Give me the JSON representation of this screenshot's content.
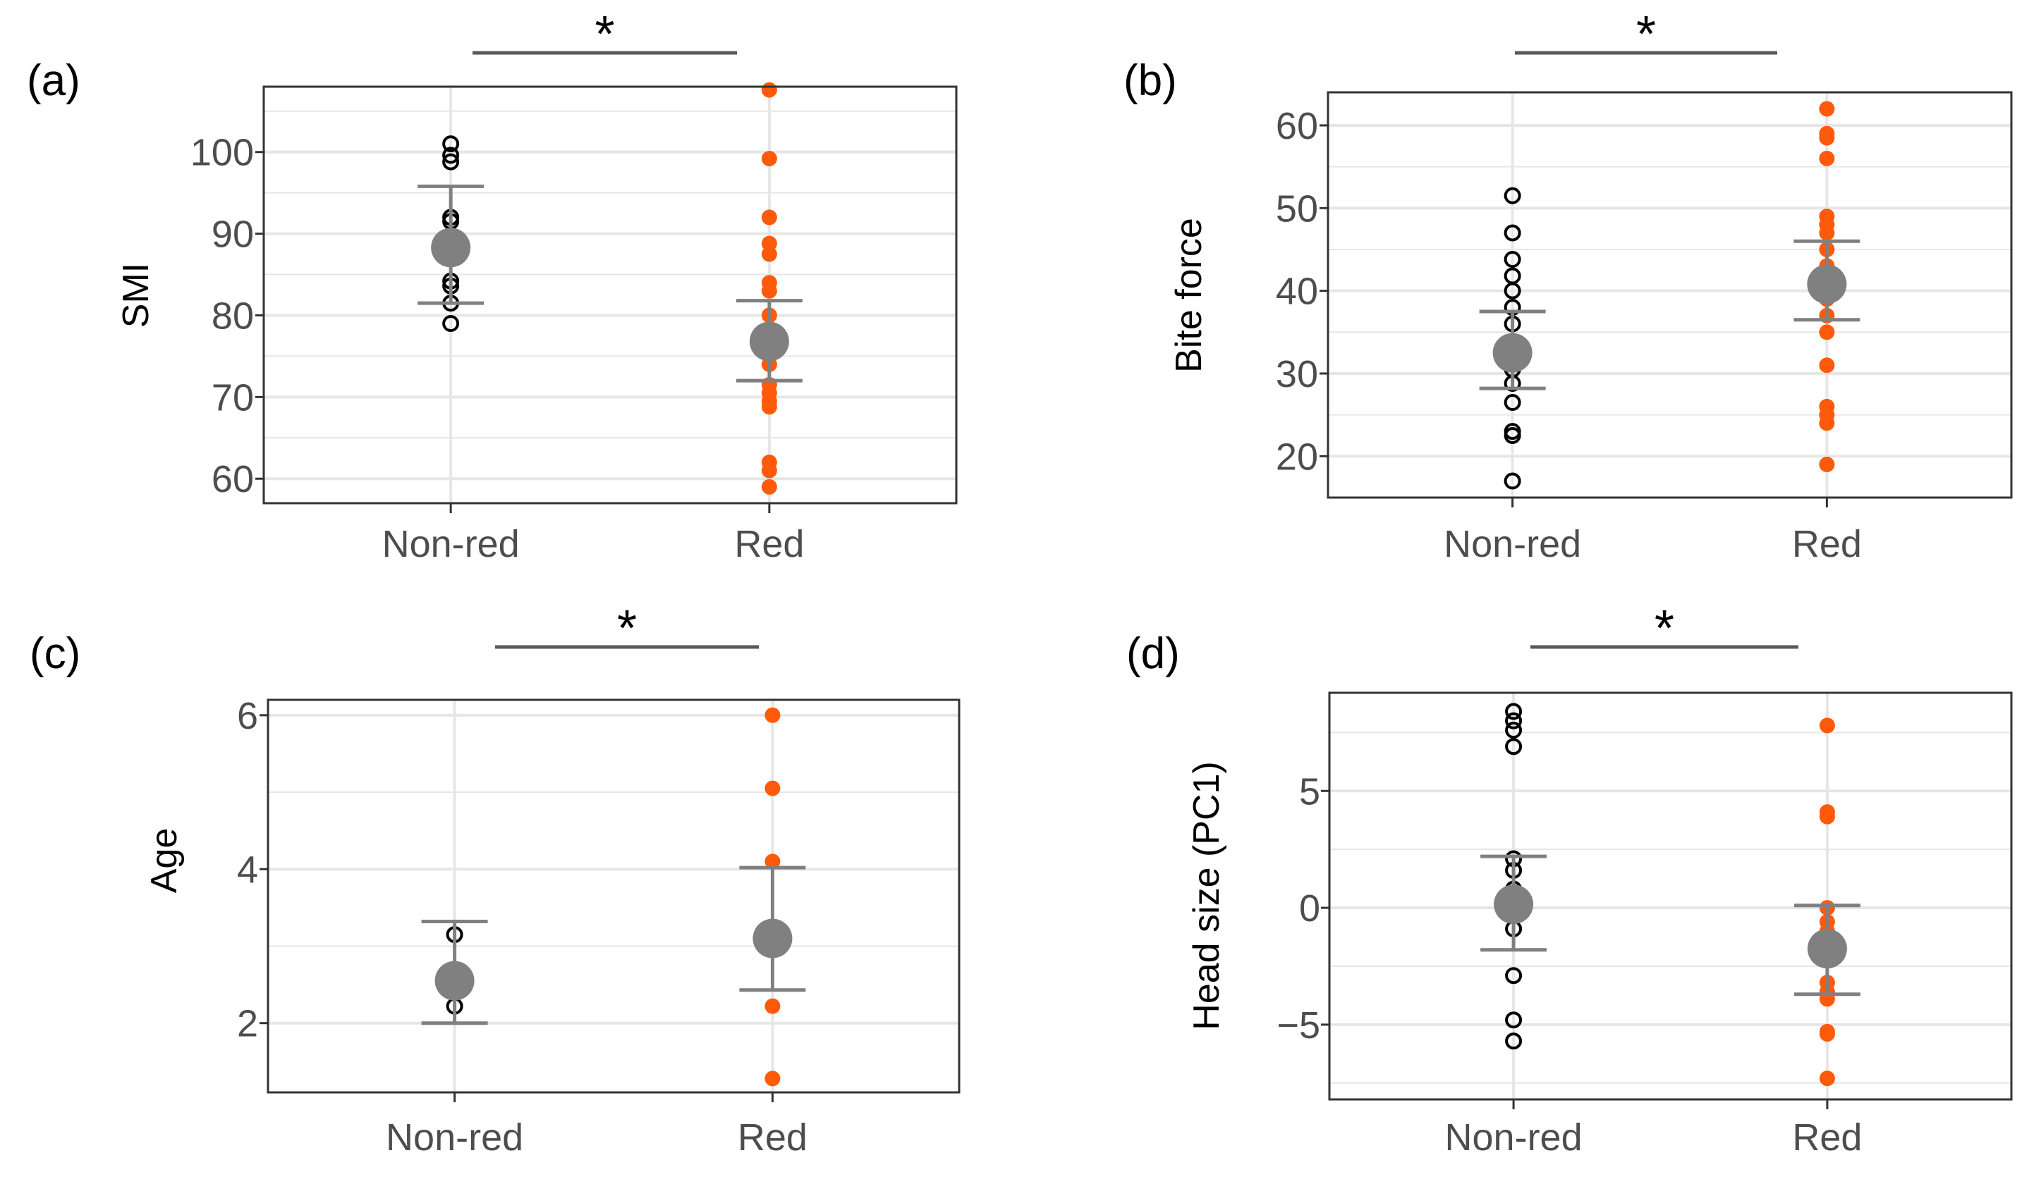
{
  "figure": {
    "background": "#ffffff"
  },
  "colors": {
    "non_red": "#000000",
    "red": "#ff5a0a",
    "summary": "#808080",
    "gridline": "#e6e6e6",
    "frame": "#333333",
    "sig_bar": "#595959"
  },
  "chart_data": [
    {
      "panel": "(a)",
      "type": "scatter",
      "categories": [
        "Non-red",
        "Red"
      ],
      "ylabel": "SMI",
      "ylim": [
        57,
        108
      ],
      "yticks": [
        60,
        70,
        80,
        90,
        100
      ],
      "significance": "*",
      "series": [
        {
          "name": "Non-red",
          "points": [
            101,
            99.6,
            98.8,
            92.0,
            91.5,
            84.2,
            83.6,
            81.5,
            79.0
          ],
          "mean": 88.3,
          "ci": [
            81.5,
            95.8
          ]
        },
        {
          "name": "Red",
          "points": [
            107.6,
            99.2,
            92.0,
            88.8,
            87.5,
            84.0,
            83.0,
            80.0,
            76.5,
            74.0,
            71.5,
            70.5,
            69.5,
            68.8,
            62.0,
            61.0,
            59.0
          ],
          "mean": 76.8,
          "ci": [
            72.0,
            81.8
          ]
        }
      ]
    },
    {
      "panel": "(b)",
      "type": "scatter",
      "categories": [
        "Non-red",
        "Red"
      ],
      "ylabel": "Bite force",
      "ylim": [
        15,
        64
      ],
      "yticks": [
        20,
        30,
        40,
        50,
        60
      ],
      "significance": "*",
      "series": [
        {
          "name": "Non-red",
          "points": [
            51.5,
            47.0,
            43.8,
            41.8,
            40.0,
            38.0,
            36.0,
            31.5,
            30.5,
            28.8,
            26.5,
            23.0,
            22.5,
            17.0
          ],
          "mean": 32.5,
          "ci": [
            28.2,
            37.5
          ]
        },
        {
          "name": "Red",
          "points": [
            62.0,
            59.0,
            58.5,
            56.0,
            49.0,
            48.0,
            47.0,
            45.0,
            43.0,
            42.0,
            41.0,
            40.0,
            39.0,
            37.0,
            35.0,
            31.0,
            26.0,
            25.0,
            24.0,
            19.0
          ],
          "mean": 40.8,
          "ci": [
            36.5,
            46.0
          ]
        }
      ]
    },
    {
      "panel": "(c)",
      "type": "scatter",
      "categories": [
        "Non-red",
        "Red"
      ],
      "ylabel": "Age",
      "ylim": [
        1.1,
        6.2
      ],
      "yticks": [
        2,
        4,
        6
      ],
      "significance": "*",
      "series": [
        {
          "name": "Non-red",
          "points": [
            3.15,
            2.22
          ],
          "mean": 2.55,
          "ci": [
            2.0,
            3.32
          ]
        },
        {
          "name": "Red",
          "points": [
            6.0,
            5.05,
            4.1,
            2.22,
            1.28
          ],
          "mean": 3.1,
          "ci": [
            2.43,
            4.02
          ]
        }
      ]
    },
    {
      "panel": "(d)",
      "type": "scatter",
      "categories": [
        "Non-red",
        "Red"
      ],
      "ylabel": "Head size (PC1)",
      "ylim": [
        -8.2,
        9.2
      ],
      "yticks": [
        -5,
        0,
        5
      ],
      "significance": "*",
      "series": [
        {
          "name": "Non-red",
          "points": [
            8.4,
            8.0,
            7.6,
            6.9,
            2.1,
            1.6,
            0.8,
            -0.9,
            -2.9,
            -4.8,
            -5.7
          ],
          "mean": 0.15,
          "ci": [
            -1.8,
            2.2
          ]
        },
        {
          "name": "Red",
          "points": [
            7.8,
            4.1,
            3.9,
            0.0,
            -0.6,
            -1.0,
            -1.5,
            -2.2,
            -3.2,
            -3.6,
            -3.9,
            -5.3,
            -5.4,
            -7.3
          ],
          "mean": -1.75,
          "ci": [
            -3.7,
            0.1
          ]
        }
      ]
    }
  ]
}
